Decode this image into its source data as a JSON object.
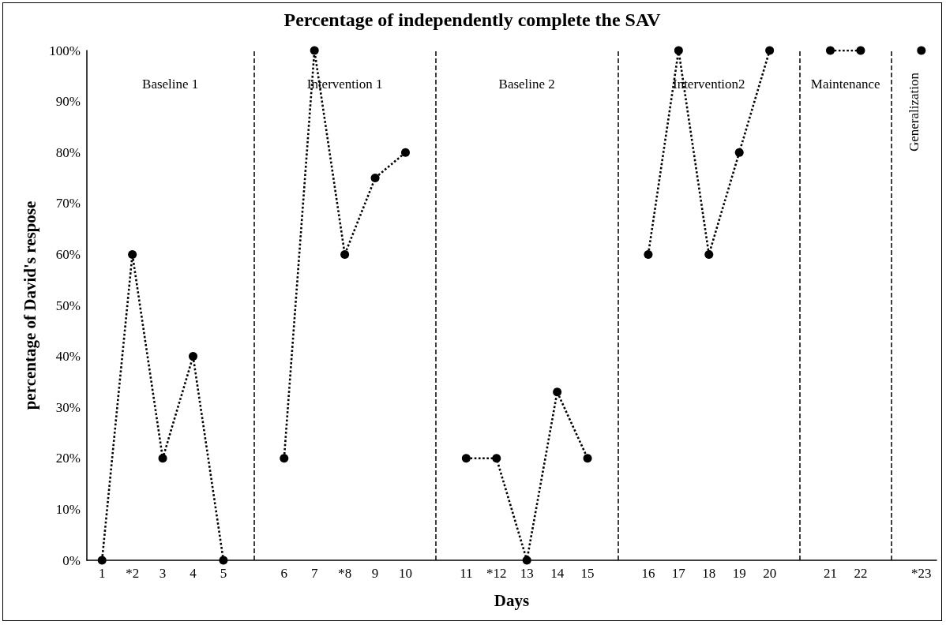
{
  "chart_data": {
    "type": "line",
    "title": "Percentage of independently complete the SAV",
    "xlabel": "Days",
    "ylabel": "percentage of David's respose",
    "categories": [
      "1",
      "*2",
      "3",
      "4",
      "5",
      null,
      "6",
      "7",
      "*8",
      "9",
      "10",
      null,
      "11",
      "*12",
      "13",
      "14",
      "15",
      null,
      "16",
      "17",
      "18",
      "19",
      "20",
      null,
      "21",
      "22",
      null,
      "*23"
    ],
    "series": [
      {
        "color": "#000000",
        "values": [
          0,
          60,
          20,
          40,
          0,
          null,
          20,
          100,
          60,
          75,
          80,
          null,
          20,
          20,
          0,
          33,
          20,
          null,
          60,
          100,
          60,
          80,
          100,
          null,
          100,
          100,
          null,
          100
        ]
      }
    ],
    "marker": "circle",
    "line_style": "dotted",
    "grid": "x",
    "ylim": [
      0,
      100
    ],
    "yticks": [
      {
        "value": 0,
        "label": "0%"
      },
      {
        "value": 10,
        "label": "10%"
      },
      {
        "value": 20,
        "label": "20%"
      },
      {
        "value": 30,
        "label": "30%"
      },
      {
        "value": 40,
        "label": "40%"
      },
      {
        "value": 50,
        "label": "50%"
      },
      {
        "value": 60,
        "label": "60%"
      },
      {
        "value": 70,
        "label": "70%"
      },
      {
        "value": 80,
        "label": "80%"
      },
      {
        "value": 90,
        "label": "90%"
      },
      {
        "value": 100,
        "label": "100%"
      }
    ],
    "annotations": [
      "Baseline 1",
      "Intervention 1",
      "Baseline 2",
      "Intervention2",
      "Maintenance",
      "Generalization"
    ]
  }
}
